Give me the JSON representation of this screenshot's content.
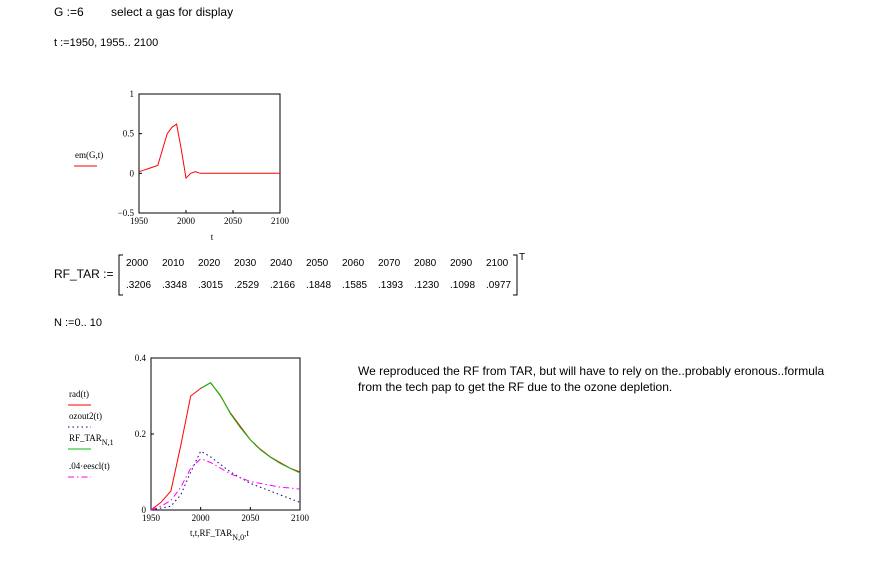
{
  "header": {
    "g_def": "G :=6",
    "g_comment": "select a gas for display",
    "t_def": "t :=1950, 1955.. 2100"
  },
  "rf_tar": {
    "label": "RF_TAR :=",
    "row1": [
      "2000",
      "2010",
      "2020",
      "2030",
      "2040",
      "2050",
      "2060",
      "2070",
      "2080",
      "2090",
      "2100"
    ],
    "row2": [
      ".3206",
      ".3348",
      ".3015",
      ".2529",
      ".2166",
      ".1848",
      ".1585",
      ".1393",
      ".1230",
      ".1098",
      ".0977"
    ],
    "transpose": "T"
  },
  "n_def": "N :=0.. 10",
  "note": {
    "line1": "We reproduced the RF from TAR, but will have to rely on the..probably eronous..formula",
    "line2": "from the tech pap to get the RF due to the ozone depletion."
  },
  "chart_data": [
    {
      "type": "line",
      "xlabel": "t",
      "ylabel": "",
      "xlim": [
        1950,
        2100
      ],
      "ylim": [
        -0.5,
        1
      ],
      "xticks": [
        "1950",
        "2000",
        "2050",
        "2100"
      ],
      "yticks": [
        "1",
        "0.5",
        "0",
        "−0.5"
      ],
      "grid": false,
      "legend_position": "left",
      "series": [
        {
          "name": "em(G,t)",
          "color": "#ff0000",
          "style": "solid",
          "x": [
            1950,
            1955,
            1960,
            1965,
            1970,
            1975,
            1980,
            1985,
            1990,
            1995,
            2000,
            2005,
            2010,
            2015,
            2020,
            2030,
            2040,
            2050,
            2060,
            2070,
            2080,
            2090,
            2100
          ],
          "y": [
            0.02,
            0.04,
            0.06,
            0.08,
            0.1,
            0.3,
            0.5,
            0.58,
            0.62,
            0.3,
            -0.06,
            0.0,
            0.02,
            0.0,
            0.0,
            0.0,
            0.0,
            0.0,
            0.0,
            0.0,
            0.0,
            0.0,
            0.0
          ]
        }
      ]
    },
    {
      "type": "line",
      "xlabel": "t,t,RF_TAR",
      "xlabel_sub": "N,0",
      "xlabel_tail": ",t",
      "ylabel": "",
      "xlim": [
        1950,
        2100
      ],
      "ylim": [
        0,
        0.4
      ],
      "xticks": [
        "1950",
        "2000",
        "2050",
        "2100"
      ],
      "yticks": [
        "0.4",
        "0.2",
        "0"
      ],
      "grid": false,
      "legend_position": "left",
      "series": [
        {
          "name": "rad(t)",
          "color": "#ff0000",
          "style": "solid",
          "x": [
            1950,
            1960,
            1970,
            1980,
            1990,
            2000,
            2010,
            2020,
            2030,
            2040,
            2050,
            2060,
            2070,
            2080,
            2090,
            2100
          ],
          "y": [
            0.0,
            0.02,
            0.05,
            0.17,
            0.3,
            0.32,
            0.335,
            0.3,
            0.255,
            0.22,
            0.185,
            0.16,
            0.14,
            0.125,
            0.11,
            0.1
          ]
        },
        {
          "name": "ozout2(t)",
          "color": "#000080",
          "style": "dotted",
          "x": [
            1950,
            1960,
            1970,
            1980,
            1990,
            2000,
            2010,
            2020,
            2030,
            2040,
            2050,
            2060,
            2070,
            2080,
            2090,
            2100
          ],
          "y": [
            0.0,
            0.005,
            0.01,
            0.04,
            0.1,
            0.155,
            0.14,
            0.12,
            0.1,
            0.085,
            0.07,
            0.06,
            0.05,
            0.04,
            0.03,
            0.02
          ]
        },
        {
          "name": "RF_TAR",
          "name_sub": "N,1",
          "color": "#00c000",
          "style": "solid",
          "x": [
            2000,
            2010,
            2020,
            2030,
            2040,
            2050,
            2060,
            2070,
            2080,
            2090,
            2100
          ],
          "y": [
            0.3206,
            0.3348,
            0.3015,
            0.2529,
            0.2166,
            0.1848,
            0.1585,
            0.1393,
            0.123,
            0.1098,
            0.0977
          ]
        },
        {
          "name": ".04·eescl(t)",
          "color": "#ff00ff",
          "style": "dashdot",
          "x": [
            1950,
            1960,
            1970,
            1980,
            1990,
            2000,
            2010,
            2020,
            2030,
            2040,
            2050,
            2060,
            2070,
            2080,
            2090,
            2100
          ],
          "y": [
            0.0,
            0.01,
            0.025,
            0.06,
            0.11,
            0.135,
            0.125,
            0.11,
            0.095,
            0.085,
            0.075,
            0.07,
            0.065,
            0.06,
            0.058,
            0.055
          ]
        }
      ]
    }
  ]
}
